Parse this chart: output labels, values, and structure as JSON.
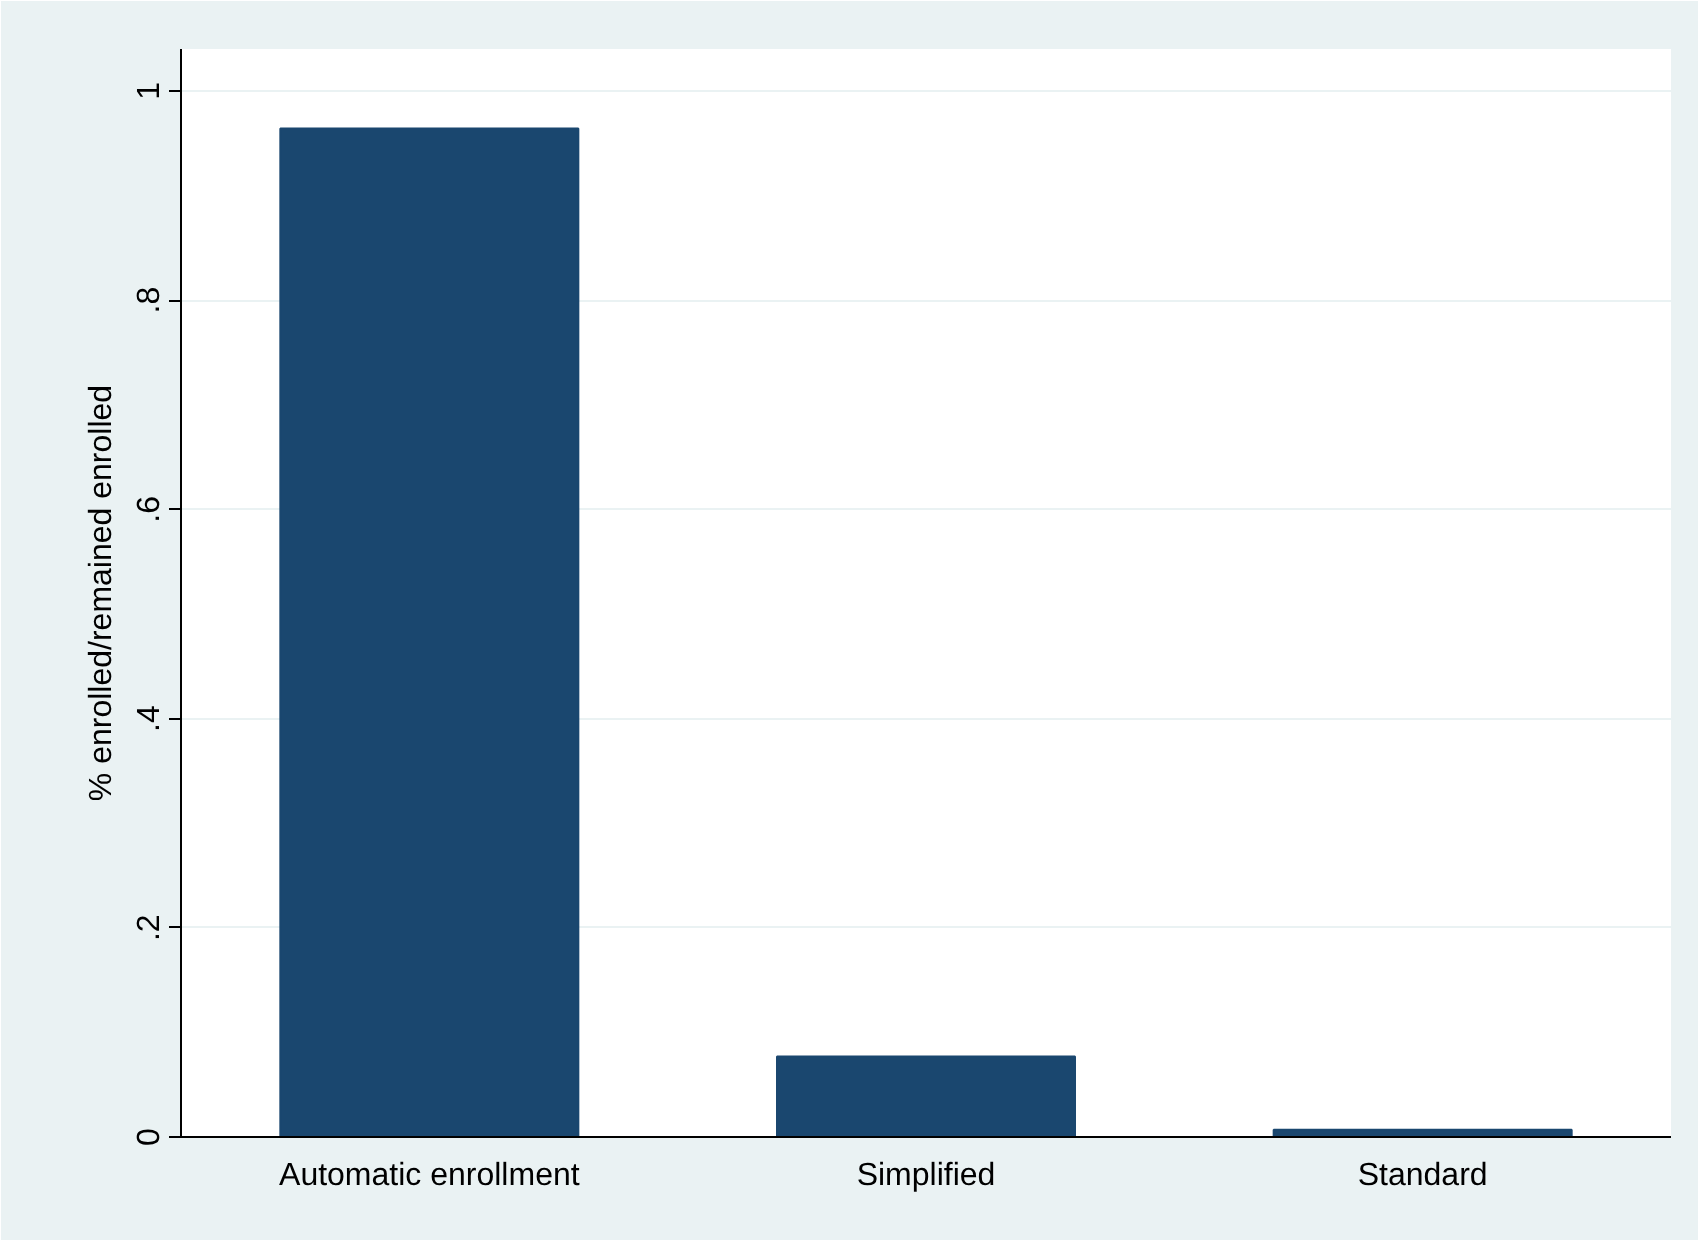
{
  "chart_data": {
    "type": "bar",
    "ylabel": "% enrolled/remained enrolled",
    "categories": [
      "Automatic enrollment",
      "Simplified",
      "Standard"
    ],
    "values": [
      0.964,
      0.077,
      0.007
    ],
    "color": "#1a476f",
    "ylim": [
      0,
      1.04
    ],
    "yticks": [
      {
        "value": 0,
        "label": "0"
      },
      {
        "value": 0.2,
        "label": ".2"
      },
      {
        "value": 0.4,
        "label": ".4"
      },
      {
        "value": 0.6,
        "label": ".6"
      },
      {
        "value": 0.8,
        "label": ".8"
      },
      {
        "value": 1,
        "label": "1"
      }
    ],
    "grid": "y"
  }
}
